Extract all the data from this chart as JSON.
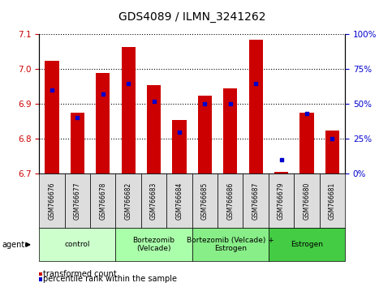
{
  "title": "GDS4089 / ILMN_3241262",
  "samples": [
    "GSM766676",
    "GSM766677",
    "GSM766678",
    "GSM766682",
    "GSM766683",
    "GSM766684",
    "GSM766685",
    "GSM766686",
    "GSM766687",
    "GSM766679",
    "GSM766680",
    "GSM766681"
  ],
  "transformed_count": [
    7.025,
    6.875,
    6.99,
    7.065,
    6.955,
    6.855,
    6.925,
    6.945,
    7.085,
    6.705,
    6.875,
    6.825
  ],
  "percentile_rank": [
    60,
    40,
    57,
    65,
    52,
    30,
    50,
    50,
    65,
    10,
    43,
    25
  ],
  "bar_bottom": 6.7,
  "ylim_left": [
    6.7,
    7.1
  ],
  "ylim_right": [
    0,
    100
  ],
  "yticks_left": [
    6.7,
    6.8,
    6.9,
    7.0,
    7.1
  ],
  "yticks_right": [
    0,
    25,
    50,
    75,
    100
  ],
  "ytick_labels_right": [
    "0%",
    "25%",
    "50%",
    "75%",
    "100%"
  ],
  "bar_color": "#cc0000",
  "dot_color": "#0000cc",
  "groups": [
    {
      "label": "control",
      "start": 0,
      "end": 3,
      "color": "#ccffcc"
    },
    {
      "label": "Bortezomib\n(Velcade)",
      "start": 3,
      "end": 6,
      "color": "#aaffaa"
    },
    {
      "label": "Bortezomib (Velcade) +\nEstrogen",
      "start": 6,
      "end": 9,
      "color": "#88ee88"
    },
    {
      "label": "Estrogen",
      "start": 9,
      "end": 12,
      "color": "#44cc44"
    }
  ],
  "legend_items": [
    {
      "label": "transformed count",
      "color": "#cc0000"
    },
    {
      "label": "percentile rank within the sample",
      "color": "#0000cc"
    }
  ],
  "tick_label_color_left": "#cc0000",
  "tick_label_color_right": "#0000cc",
  "sample_box_color": "#dddddd"
}
